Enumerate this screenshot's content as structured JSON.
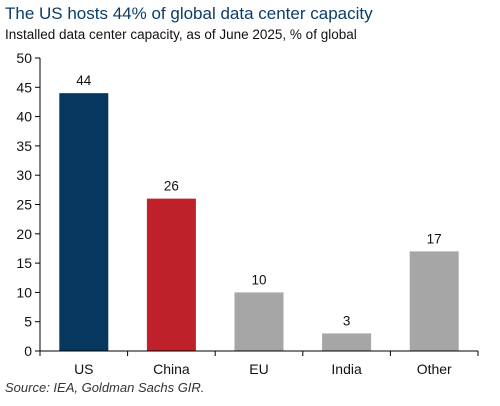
{
  "chart_data": {
    "type": "bar",
    "title": "The US hosts 44% of global data center capacity",
    "subtitle": "Installed data center capacity, as of June 2025, % of global",
    "categories": [
      "US",
      "China",
      "EU",
      "India",
      "Other"
    ],
    "values": [
      44,
      26,
      10,
      3,
      17
    ],
    "data_labels": [
      "44",
      "26",
      "10",
      "3",
      "17"
    ],
    "bar_colors": [
      "#05375f",
      "#c0202a",
      "#a6a6a6",
      "#a6a6a6",
      "#a6a6a6"
    ],
    "ylim": [
      0,
      50
    ],
    "yticks": [
      "0",
      "5",
      "10",
      "15",
      "20",
      "25",
      "30",
      "35",
      "40",
      "45",
      "50"
    ],
    "xlabel": "",
    "ylabel": "",
    "grid": false,
    "source": "Source: IEA, Goldman Sachs GIR."
  }
}
